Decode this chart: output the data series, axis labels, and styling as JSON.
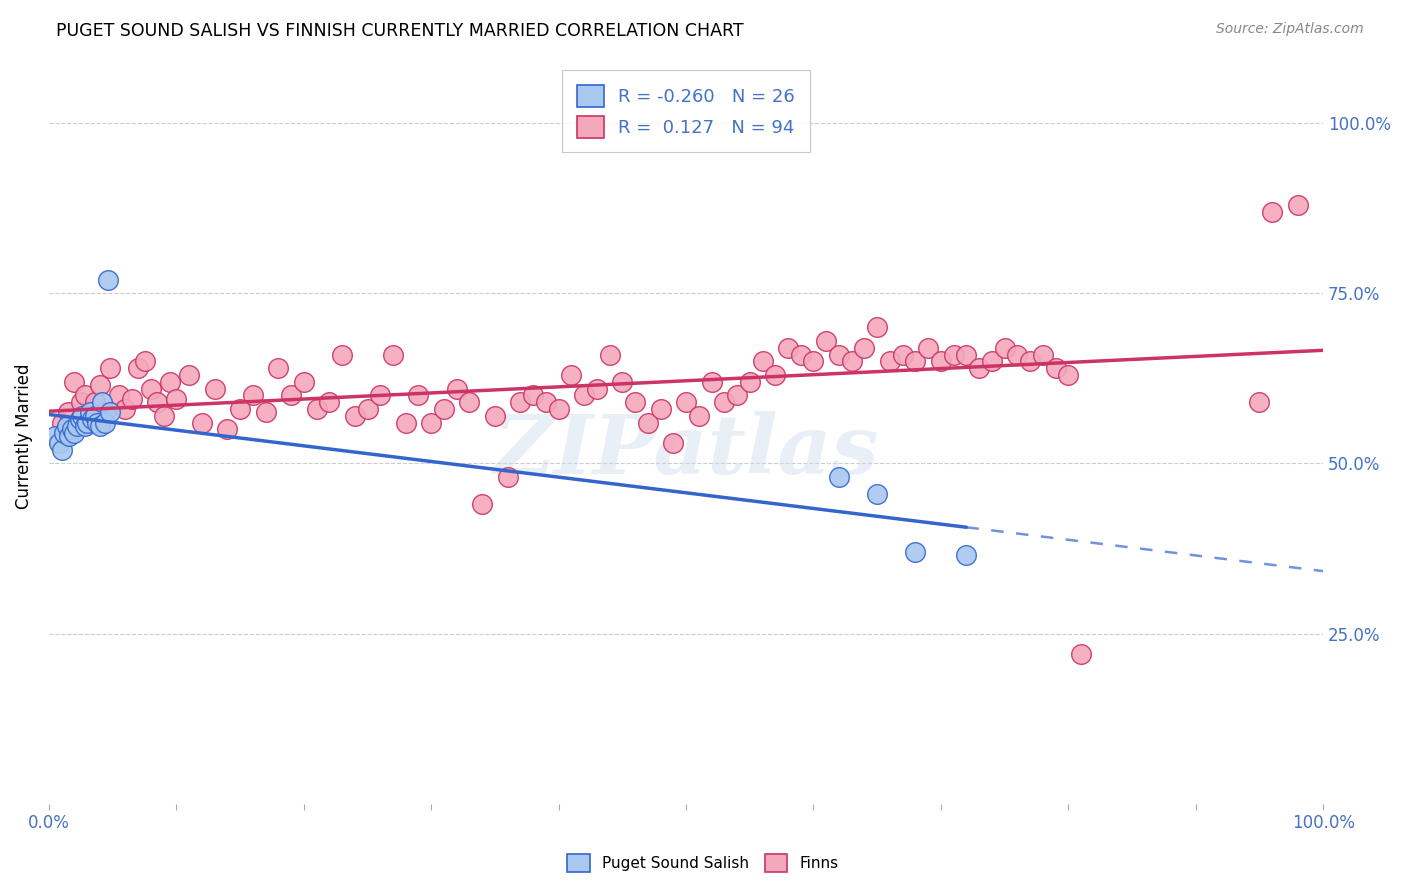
{
  "title": "PUGET SOUND SALISH VS FINNISH CURRENTLY MARRIED CORRELATION CHART",
  "source": "Source: ZipAtlas.com",
  "ylabel": "Currently Married",
  "watermark": "ZIPatlas",
  "legend_label1": "Puget Sound Salish",
  "legend_label2": "Finns",
  "R1": -0.26,
  "N1": 26,
  "R2": 0.127,
  "N2": 94,
  "color_blue": "#A8C8F0",
  "color_pink": "#F4A8BC",
  "line_color_blue": "#3366CC",
  "line_color_pink": "#CC3366",
  "blue_scatter_x": [
    0.005,
    0.008,
    0.01,
    0.012,
    0.014,
    0.016,
    0.018,
    0.02,
    0.022,
    0.024,
    0.026,
    0.028,
    0.03,
    0.032,
    0.034,
    0.036,
    0.038,
    0.04,
    0.042,
    0.044,
    0.046,
    0.048,
    0.62,
    0.65,
    0.68,
    0.72
  ],
  "blue_scatter_y": [
    0.54,
    0.53,
    0.52,
    0.545,
    0.555,
    0.54,
    0.55,
    0.545,
    0.555,
    0.565,
    0.57,
    0.555,
    0.56,
    0.575,
    0.565,
    0.57,
    0.56,
    0.555,
    0.59,
    0.56,
    0.77,
    0.575,
    0.48,
    0.455,
    0.37,
    0.365
  ],
  "pink_scatter_x": [
    0.01,
    0.015,
    0.02,
    0.025,
    0.028,
    0.032,
    0.036,
    0.04,
    0.044,
    0.048,
    0.055,
    0.06,
    0.065,
    0.07,
    0.075,
    0.08,
    0.085,
    0.09,
    0.095,
    0.1,
    0.11,
    0.12,
    0.13,
    0.14,
    0.15,
    0.16,
    0.17,
    0.18,
    0.19,
    0.2,
    0.21,
    0.22,
    0.23,
    0.24,
    0.25,
    0.26,
    0.27,
    0.28,
    0.29,
    0.3,
    0.31,
    0.32,
    0.33,
    0.34,
    0.35,
    0.36,
    0.37,
    0.38,
    0.39,
    0.4,
    0.41,
    0.42,
    0.43,
    0.44,
    0.45,
    0.46,
    0.47,
    0.48,
    0.49,
    0.5,
    0.51,
    0.52,
    0.53,
    0.54,
    0.55,
    0.56,
    0.57,
    0.58,
    0.59,
    0.6,
    0.61,
    0.62,
    0.63,
    0.64,
    0.65,
    0.66,
    0.67,
    0.68,
    0.69,
    0.7,
    0.71,
    0.72,
    0.73,
    0.74,
    0.75,
    0.76,
    0.77,
    0.78,
    0.79,
    0.8,
    0.81,
    0.95,
    0.96,
    0.98
  ],
  "pink_scatter_y": [
    0.56,
    0.575,
    0.62,
    0.59,
    0.6,
    0.57,
    0.59,
    0.615,
    0.575,
    0.64,
    0.6,
    0.58,
    0.595,
    0.64,
    0.65,
    0.61,
    0.59,
    0.57,
    0.62,
    0.595,
    0.63,
    0.56,
    0.61,
    0.55,
    0.58,
    0.6,
    0.575,
    0.64,
    0.6,
    0.62,
    0.58,
    0.59,
    0.66,
    0.57,
    0.58,
    0.6,
    0.66,
    0.56,
    0.6,
    0.56,
    0.58,
    0.61,
    0.59,
    0.44,
    0.57,
    0.48,
    0.59,
    0.6,
    0.59,
    0.58,
    0.63,
    0.6,
    0.61,
    0.66,
    0.62,
    0.59,
    0.56,
    0.58,
    0.53,
    0.59,
    0.57,
    0.62,
    0.59,
    0.6,
    0.62,
    0.65,
    0.63,
    0.67,
    0.66,
    0.65,
    0.68,
    0.66,
    0.65,
    0.67,
    0.7,
    0.65,
    0.66,
    0.65,
    0.67,
    0.65,
    0.66,
    0.66,
    0.64,
    0.65,
    0.67,
    0.66,
    0.65,
    0.66,
    0.64,
    0.63,
    0.22,
    0.59,
    0.87,
    0.88
  ]
}
